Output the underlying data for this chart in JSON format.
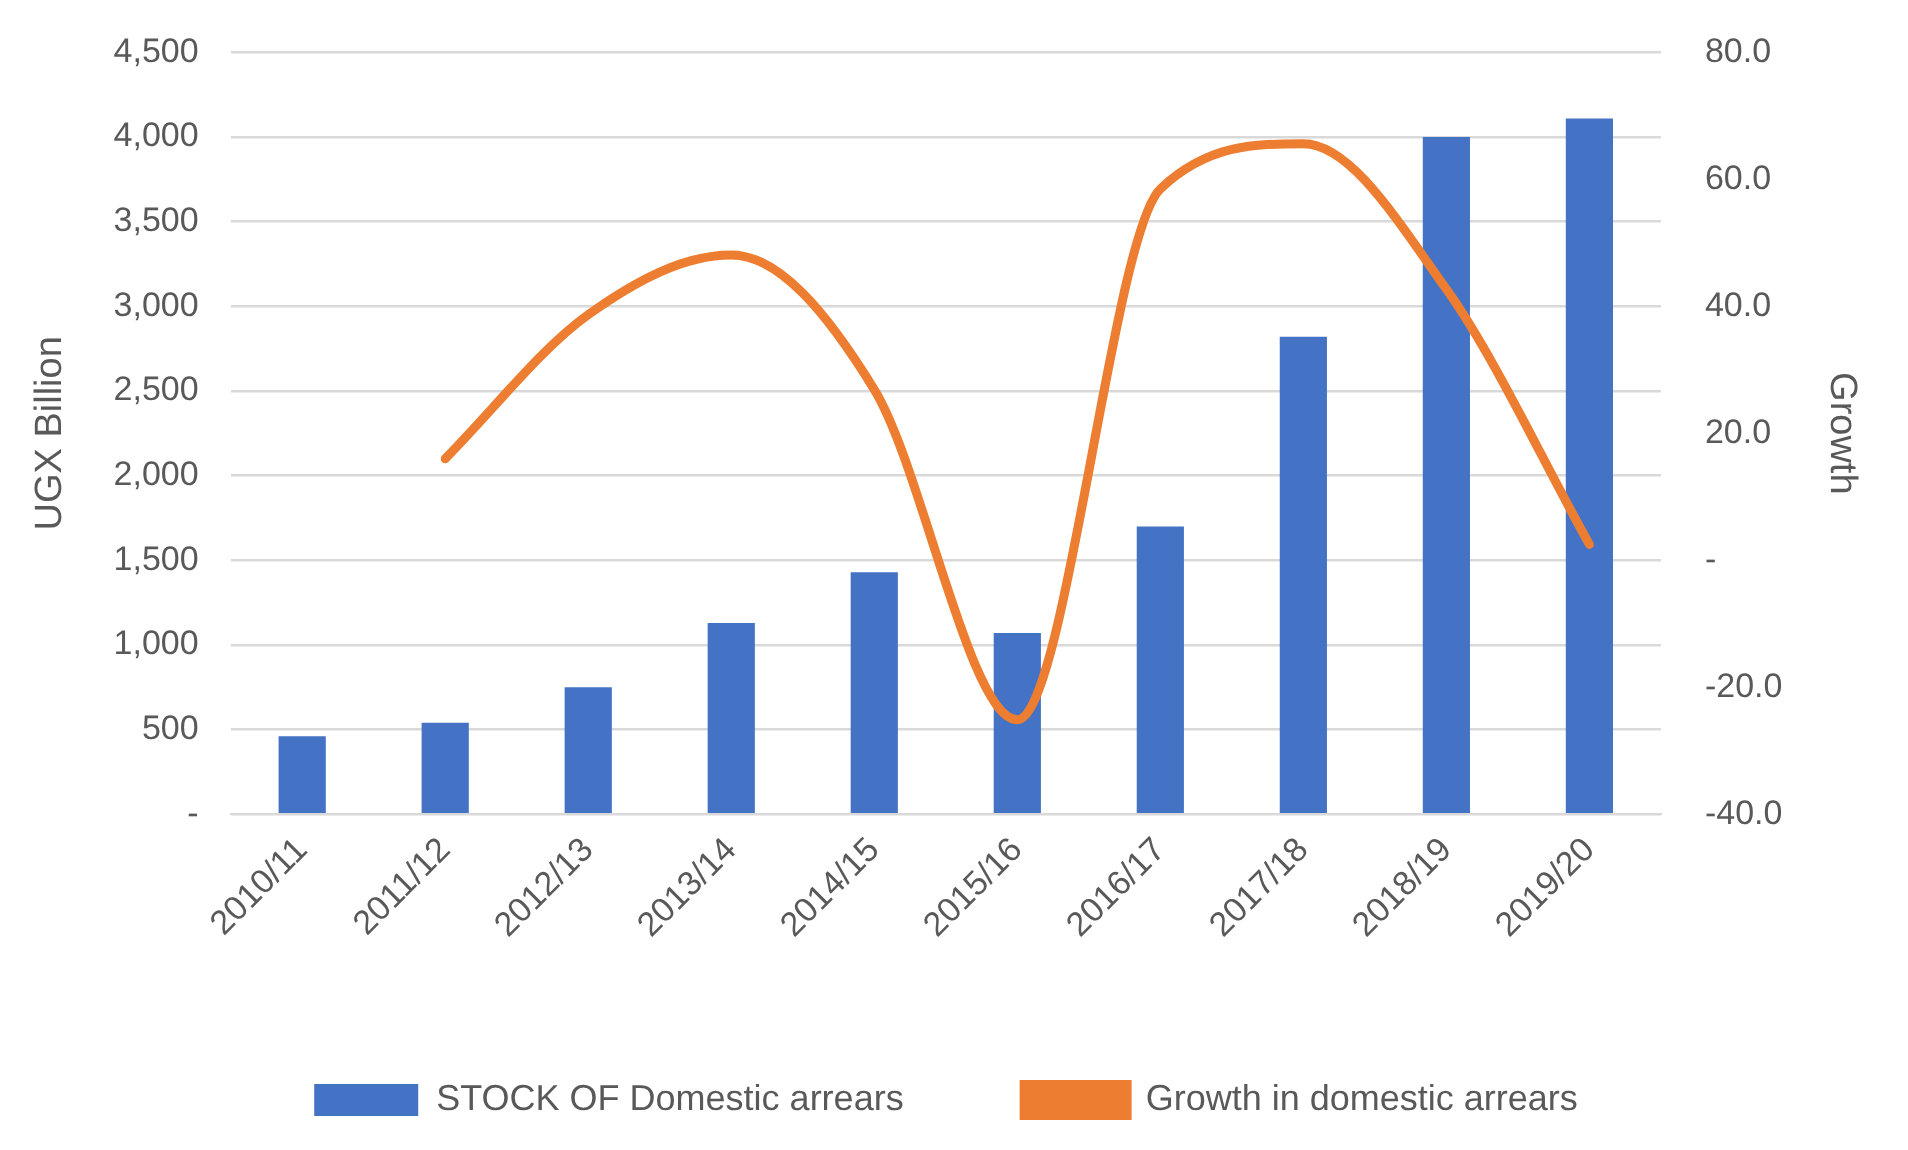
{
  "chart_data": {
    "type": "bar",
    "categories": [
      "2010/11",
      "2011/12",
      "2012/13",
      "2013/14",
      "2014/15",
      "2015/16",
      "2016/17",
      "2017/18",
      "2018/19",
      "2019/20"
    ],
    "series": [
      {
        "name": "STOCK OF Domestic arrears",
        "color": "#4472c4",
        "values": [
          460,
          540,
          750,
          1130,
          1430,
          1070,
          1700,
          2820,
          4000,
          4110
        ]
      },
      {
        "name": "Growth in domestic arrears",
        "type": "line",
        "axis": "y2",
        "color": "#ed7d31",
        "values": [
          null,
          16.0,
          38.7,
          48.1,
          26.9,
          -25.1,
          58.5,
          65.6,
          42.7,
          2.5
        ]
      }
    ],
    "ylabel": "UGX Billion",
    "y2label": "Growth",
    "ylim": [
      0,
      4500
    ],
    "yticks": [
      {
        "value": 0,
        "label": "-"
      },
      {
        "value": 500,
        "label": "500"
      },
      {
        "value": 1000,
        "label": "1,000"
      },
      {
        "value": 1500,
        "label": "1,500"
      },
      {
        "value": 2000,
        "label": "2,000"
      },
      {
        "value": 2500,
        "label": "2,500"
      },
      {
        "value": 3000,
        "label": "3,000"
      },
      {
        "value": 3500,
        "label": "3,500"
      },
      {
        "value": 4000,
        "label": "4,000"
      },
      {
        "value": 4500,
        "label": "4,500"
      }
    ],
    "y2lim": [
      -40,
      80
    ],
    "y2ticks": [
      {
        "value": -40,
        "label": "-40.0"
      },
      {
        "value": -20,
        "label": "-20.0"
      },
      {
        "value": 0,
        "label": "-"
      },
      {
        "value": 20,
        "label": "20.0"
      },
      {
        "value": 40,
        "label": "40.0"
      },
      {
        "value": 60,
        "label": "60.0"
      },
      {
        "value": 80,
        "label": "80.0"
      }
    ],
    "grid": "y",
    "legend": "bottom",
    "marker": "none"
  }
}
